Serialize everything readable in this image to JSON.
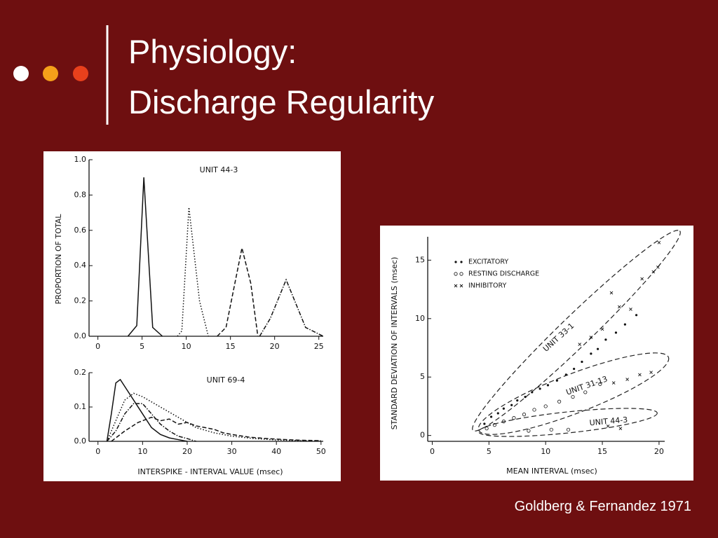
{
  "header": {
    "title": [
      "Physiology:",
      "Discharge Regularity"
    ]
  },
  "citation": "Goldberg & Fernandez 1971",
  "chart_data": [
    {
      "type": "line",
      "y_label": "PROPORTION OF TOTAL",
      "annotations": [
        "UNIT 44-3"
      ],
      "xlim": [
        -1,
        25.5
      ],
      "ylim": [
        0,
        1.0
      ],
      "xticks": [
        0,
        5,
        10,
        15,
        20,
        25
      ],
      "yticks": [
        {
          "value": 0,
          "label": "0.0"
        },
        0.2,
        0.4,
        0.6,
        0.8,
        {
          "value": 1,
          "label": "1.0"
        }
      ],
      "color": "#111",
      "series": [
        {
          "dash": "solid",
          "x": [
            3.4,
            4.4,
            5.2,
            6.2,
            7.3
          ],
          "values": [
            0,
            0.06,
            0.9,
            0.05,
            0
          ]
        },
        {
          "dash": "dotted",
          "x": [
            9,
            9.5,
            10.3,
            11.5,
            12.5
          ],
          "values": [
            0,
            0.03,
            0.73,
            0.2,
            0
          ]
        },
        {
          "dash": "dashed",
          "x": [
            13.5,
            14.5,
            16.3,
            17.3,
            18.1
          ],
          "values": [
            0,
            0.05,
            0.5,
            0.3,
            0
          ]
        },
        {
          "dash": "dashdot",
          "x": [
            18.3,
            19.5,
            21.3,
            23.5,
            25.5
          ],
          "values": [
            0,
            0.1,
            0.32,
            0.05,
            0
          ]
        }
      ]
    },
    {
      "type": "line",
      "x_label": "INTERSPIKE - INTERVAL VALUE (msec)",
      "annotations": [
        "UNIT 69-4"
      ],
      "xlim": [
        -2,
        50.5
      ],
      "ylim": [
        0,
        0.2
      ],
      "xticks": [
        0,
        10,
        20,
        30,
        40,
        50
      ],
      "yticks": [
        {
          "value": 0,
          "label": "0.0"
        },
        0.1,
        0.2
      ],
      "color": "#111",
      "series": [
        {
          "dash": "solid",
          "x": [
            2,
            3,
            4,
            5,
            6,
            8,
            10,
            12,
            14,
            16,
            18,
            20
          ],
          "values": [
            0,
            0.08,
            0.17,
            0.18,
            0.16,
            0.12,
            0.08,
            0.04,
            0.02,
            0.01,
            0.005,
            0
          ]
        },
        {
          "dash": "dashdot",
          "x": [
            2,
            4,
            6,
            8,
            10,
            12,
            14,
            16,
            18,
            20,
            22
          ],
          "values": [
            0,
            0.03,
            0.08,
            0.11,
            0.11,
            0.08,
            0.05,
            0.03,
            0.015,
            0.008,
            0
          ]
        },
        {
          "dash": "dotted",
          "x": [
            2,
            4,
            6,
            8,
            10,
            14,
            18,
            22,
            26,
            30,
            35,
            40,
            45,
            50
          ],
          "values": [
            0,
            0.06,
            0.12,
            0.14,
            0.13,
            0.1,
            0.07,
            0.04,
            0.025,
            0.015,
            0.008,
            0.004,
            0.002,
            0.001
          ]
        },
        {
          "dash": "dashed",
          "x": [
            3,
            6,
            9,
            12,
            14,
            16,
            18,
            20,
            22,
            24,
            26,
            28,
            30,
            34,
            38,
            42,
            46,
            50
          ],
          "values": [
            0,
            0.03,
            0.055,
            0.07,
            0.06,
            0.065,
            0.05,
            0.055,
            0.045,
            0.04,
            0.035,
            0.025,
            0.02,
            0.012,
            0.008,
            0.005,
            0.003,
            0.002
          ]
        }
      ]
    },
    {
      "type": "scatter",
      "x_label": "MEAN INTERVAL (msec)",
      "y_label": "STANDARD DEVIATION OF INTERVALS (msec)",
      "annotations": [
        "UNIT 33-1",
        "UNIT 31-13",
        "UNIT 44-3"
      ],
      "legend": "upper left",
      "xlim": [
        -0.4,
        20.5
      ],
      "ylim": [
        -0.5,
        17
      ],
      "xticks": [
        0,
        5,
        10,
        15,
        20
      ],
      "yticks": [
        0,
        5,
        10,
        15
      ],
      "color": "#111",
      "series": [
        {
          "name": "EXCITATORY",
          "marker": "dot",
          "x": [
            4.6,
            5.2,
            5.8,
            6.3,
            7.0,
            7.5,
            8.2,
            8.8,
            9.5,
            10.2,
            11.0,
            11.8,
            12.5,
            13.2,
            14.0,
            14.6,
            15.3,
            16.2,
            17.0,
            18.0
          ],
          "values": [
            1.0,
            1.6,
            1.9,
            2.3,
            2.6,
            3.0,
            3.3,
            3.7,
            4.0,
            4.3,
            4.7,
            5.2,
            5.7,
            6.3,
            7.0,
            7.4,
            8.2,
            8.8,
            9.5,
            10.3
          ]
        },
        {
          "name": "RESTING DISCHARGE",
          "marker": "circle",
          "x": [
            4.8,
            5.5,
            6.3,
            7.2,
            8.1,
            9.0,
            10.0,
            11.2,
            12.4,
            13.5,
            14.8,
            8.5,
            10.5,
            12.0
          ],
          "values": [
            0.6,
            0.9,
            1.2,
            1.5,
            1.8,
            2.2,
            2.5,
            2.9,
            3.3,
            3.7,
            4.4,
            0.4,
            0.5,
            0.5
          ]
        },
        {
          "name": "INHIBITORY",
          "marker": "cross",
          "x": [
            13.0,
            14.0,
            15.0,
            15.8,
            16.5,
            17.5,
            18.5,
            19.5,
            19.9,
            20.0,
            16.0,
            17.2,
            18.3,
            19.3,
            15.5,
            16.6
          ],
          "values": [
            7.8,
            8.4,
            9.1,
            12.2,
            11.0,
            10.8,
            13.4,
            14.0,
            14.4,
            16.5,
            4.5,
            4.8,
            5.2,
            5.4,
            0.8,
            0.6
          ]
        }
      ]
    }
  ]
}
